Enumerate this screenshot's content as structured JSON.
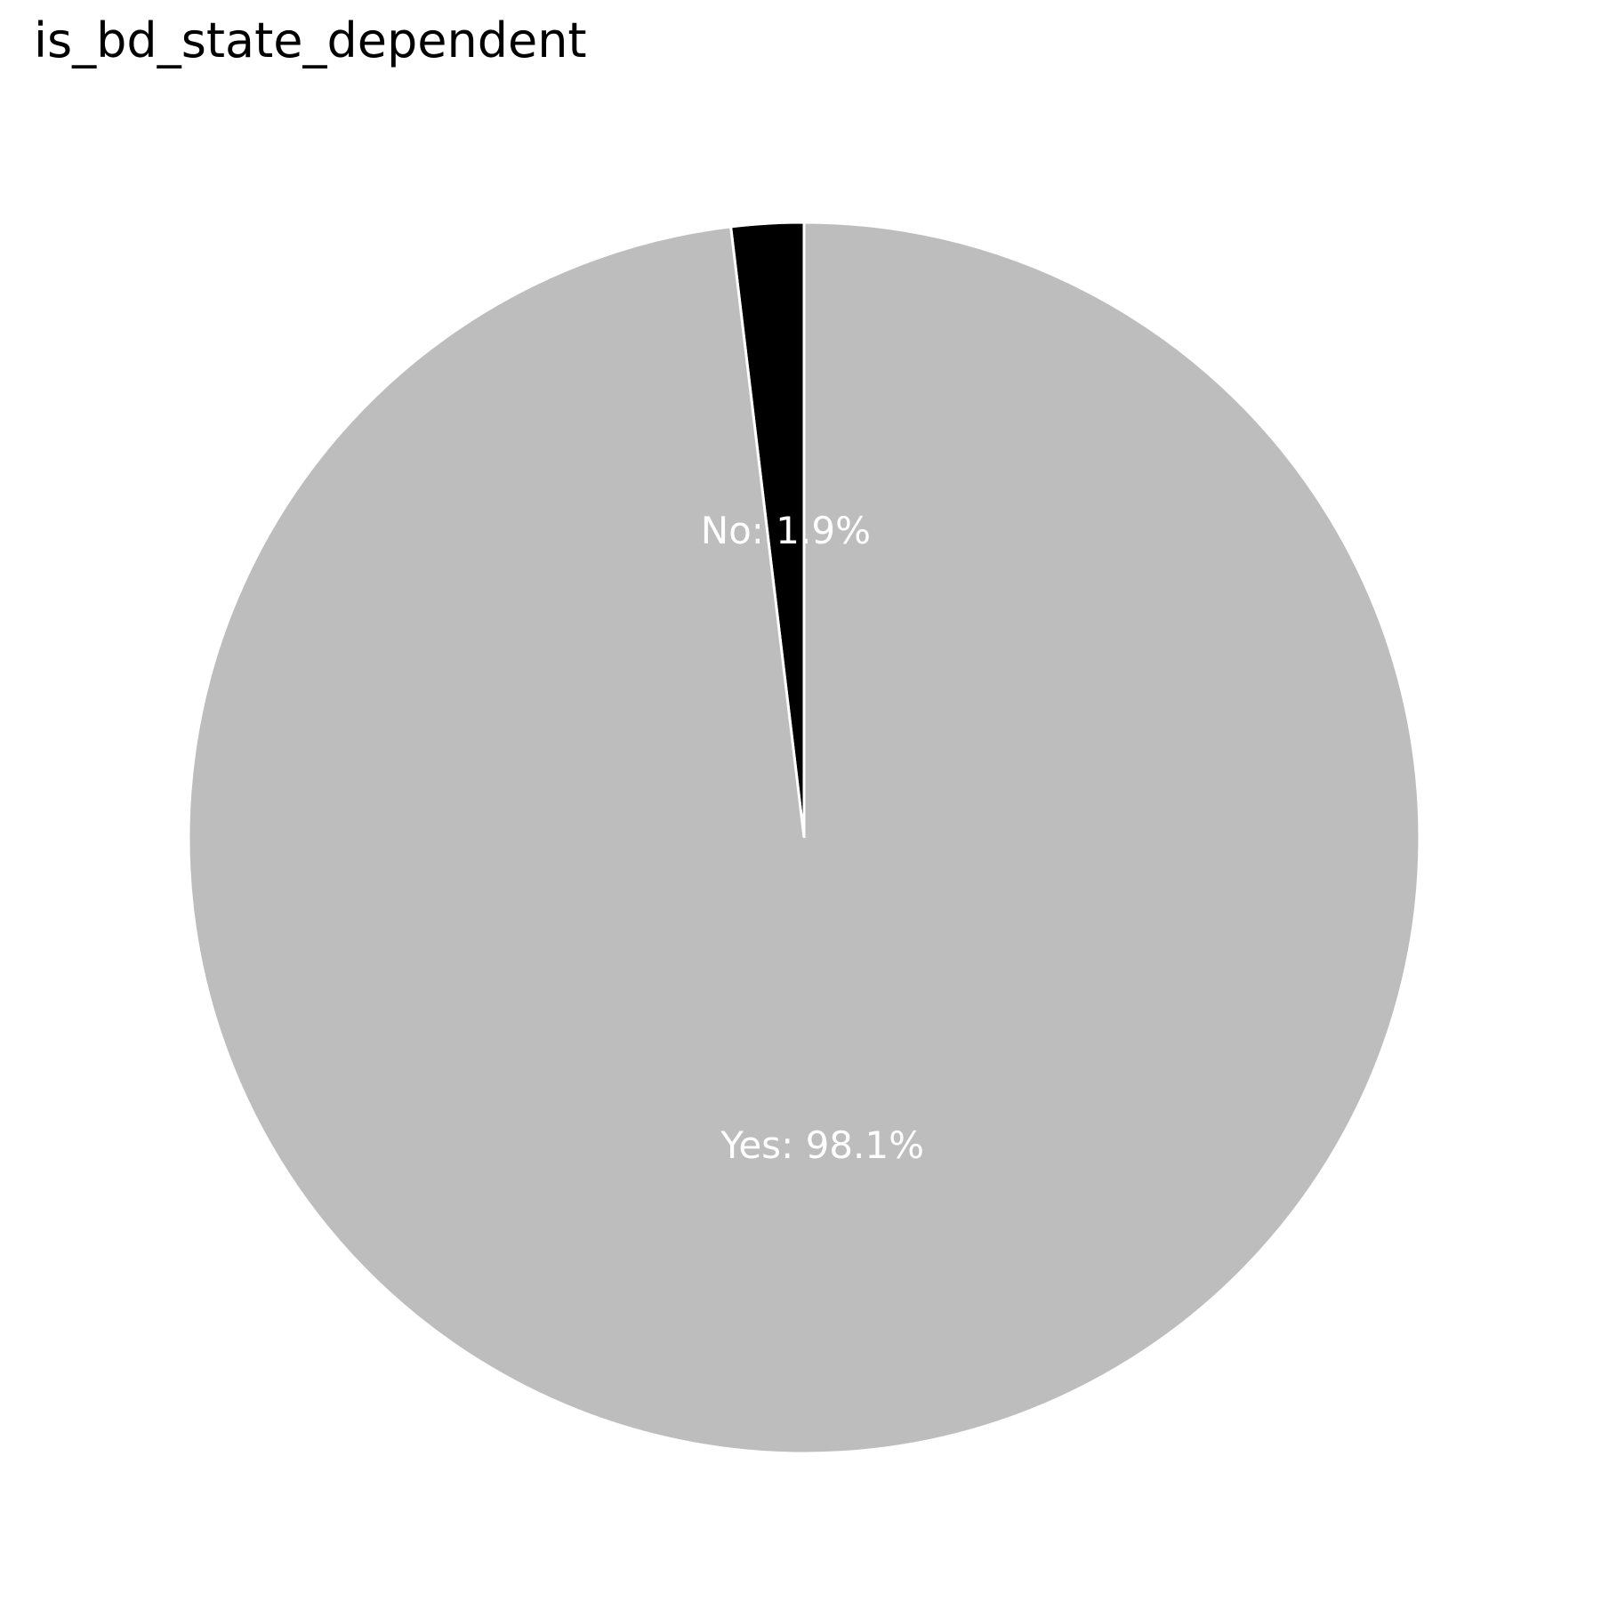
{
  "chart_data": {
    "type": "pie",
    "title": "is_bd_state_dependent",
    "slices": [
      {
        "label": "No",
        "percent": 1.9,
        "color": "#000000",
        "display": "No: 1.9%"
      },
      {
        "label": "Yes",
        "percent": 98.1,
        "color": "#bdbdbd",
        "display": "Yes: 98.1%"
      }
    ],
    "start_angle": "top (12 o'clock)",
    "direction": "counterclockwise",
    "edge_color": "#ffffff",
    "legend": "none"
  }
}
